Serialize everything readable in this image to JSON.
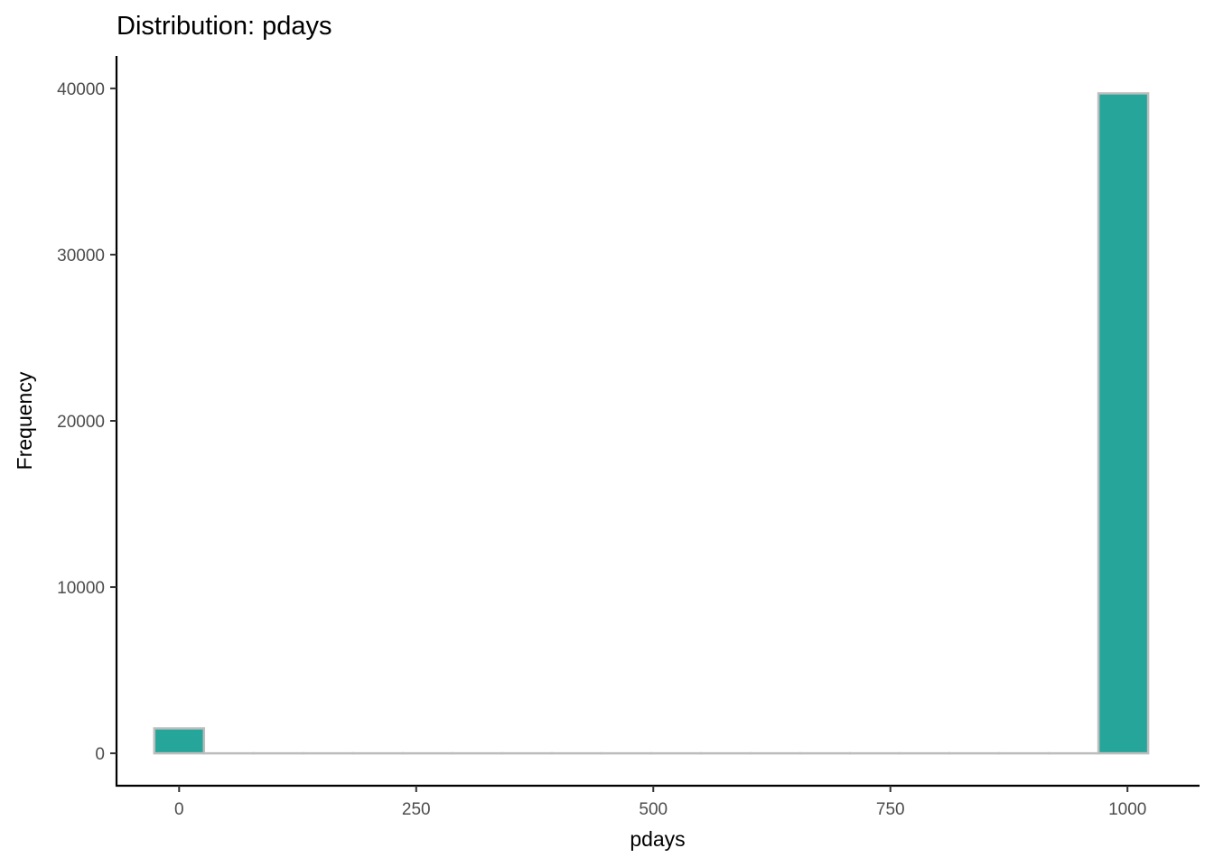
{
  "chart_data": {
    "type": "bar",
    "title": "Distribution: pdays",
    "xlabel": "pdays",
    "ylabel": "Frequency",
    "xlim": [
      -66,
      1076
    ],
    "ylim": [
      -1950,
      41950
    ],
    "x_ticks": [
      0,
      250,
      500,
      750,
      1000
    ],
    "x_tick_labels": [
      "0",
      "250",
      "500",
      "750",
      "1000"
    ],
    "y_ticks": [
      0,
      10000,
      20000,
      30000,
      40000
    ],
    "y_tick_labels": [
      "0",
      "10000",
      "20000",
      "30000",
      "40000"
    ],
    "bin_width": 52.4,
    "bins": [
      {
        "x0": -26.2,
        "x1": 26.2,
        "count": 1500
      },
      {
        "x0": 26.2,
        "x1": 78.6,
        "count": 0
      },
      {
        "x0": 78.6,
        "x1": 131.0,
        "count": 0
      },
      {
        "x0": 131.0,
        "x1": 183.4,
        "count": 0
      },
      {
        "x0": 183.4,
        "x1": 235.8,
        "count": 0
      },
      {
        "x0": 235.8,
        "x1": 288.2,
        "count": 0
      },
      {
        "x0": 288.2,
        "x1": 340.6,
        "count": 0
      },
      {
        "x0": 340.6,
        "x1": 393.0,
        "count": 0
      },
      {
        "x0": 393.0,
        "x1": 445.4,
        "count": 0
      },
      {
        "x0": 445.4,
        "x1": 497.8,
        "count": 0
      },
      {
        "x0": 497.8,
        "x1": 550.2,
        "count": 0
      },
      {
        "x0": 550.2,
        "x1": 602.6,
        "count": 0
      },
      {
        "x0": 602.6,
        "x1": 655.0,
        "count": 0
      },
      {
        "x0": 655.0,
        "x1": 707.4,
        "count": 0
      },
      {
        "x0": 707.4,
        "x1": 759.8,
        "count": 0
      },
      {
        "x0": 759.8,
        "x1": 812.2,
        "count": 0
      },
      {
        "x0": 812.2,
        "x1": 864.6,
        "count": 0
      },
      {
        "x0": 864.6,
        "x1": 917.0,
        "count": 0
      },
      {
        "x0": 917.0,
        "x1": 969.4,
        "count": 0
      },
      {
        "x0": 969.4,
        "x1": 1021.8,
        "count": 39700
      }
    ],
    "colors": {
      "bar_fill": "#26a69a",
      "bar_outline": "#bdbdbd",
      "axis_line": "#000000",
      "tick_text": "#4d4d4d"
    },
    "grid": false,
    "legend": "none"
  }
}
